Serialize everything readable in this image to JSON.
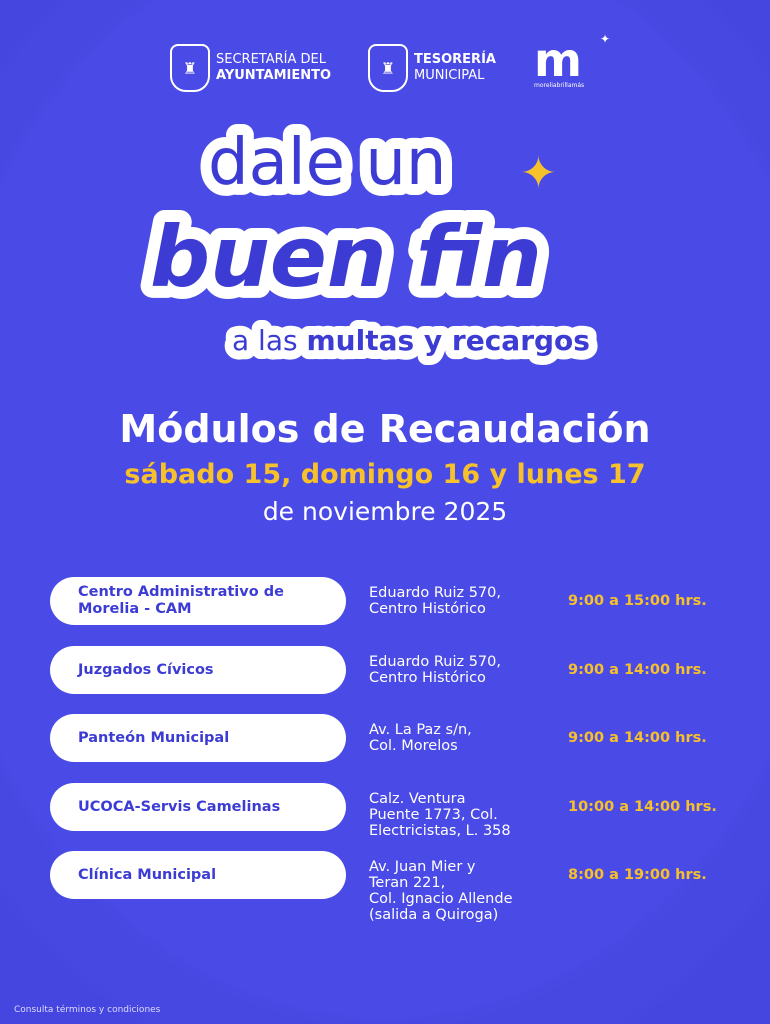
{
  "header": {
    "logos": [
      {
        "line1": "SECRETARÍA DEL",
        "line2": "AYUNTAMIENTO"
      },
      {
        "line1": "TESORERÍA",
        "line2": "MUNICIPAL"
      }
    ],
    "brand": {
      "mark": "m",
      "tagline": "moreliabrillamás"
    }
  },
  "headline": {
    "line1": "dale un",
    "line2": "buen fin",
    "line3_light": "a las",
    "line3_bold": "multas y recargos"
  },
  "title": "Módulos de Recaudación",
  "dates": "sábado 15, domingo 16 y lunes 17",
  "month": "de noviembre 2025",
  "modules": [
    {
      "name": "Centro Administrativo de Morelia - CAM",
      "address": "Eduardo Ruiz 570,\nCentro Histórico",
      "hours": "9:00 a 15:00 hrs."
    },
    {
      "name": "Juzgados Cívicos",
      "address": "Eduardo Ruiz 570,\nCentro Histórico",
      "hours": "9:00 a 14:00 hrs."
    },
    {
      "name": "Panteón Municipal",
      "address": "Av. La Paz s/n,\nCol. Morelos",
      "hours": "9:00 a 14:00 hrs."
    },
    {
      "name": "UCOCA-Servis Camelinas",
      "address": "Calz. Ventura\nPuente 1773, Col.\nElectricistas, L. 358",
      "hours": "10:00 a 14:00 hrs."
    },
    {
      "name": "Clínica Municipal",
      "address": "Av. Juan Mier y\nTeran 221,\nCol. Ignacio Allende\n(salida a Quiroga)",
      "hours": "8:00 a 19:00 hrs."
    }
  ],
  "footer": "Consulta términos y condiciones",
  "colors": {
    "background": "#4545df",
    "accent": "#f6c12a",
    "pill_text": "#3c3cd4"
  }
}
